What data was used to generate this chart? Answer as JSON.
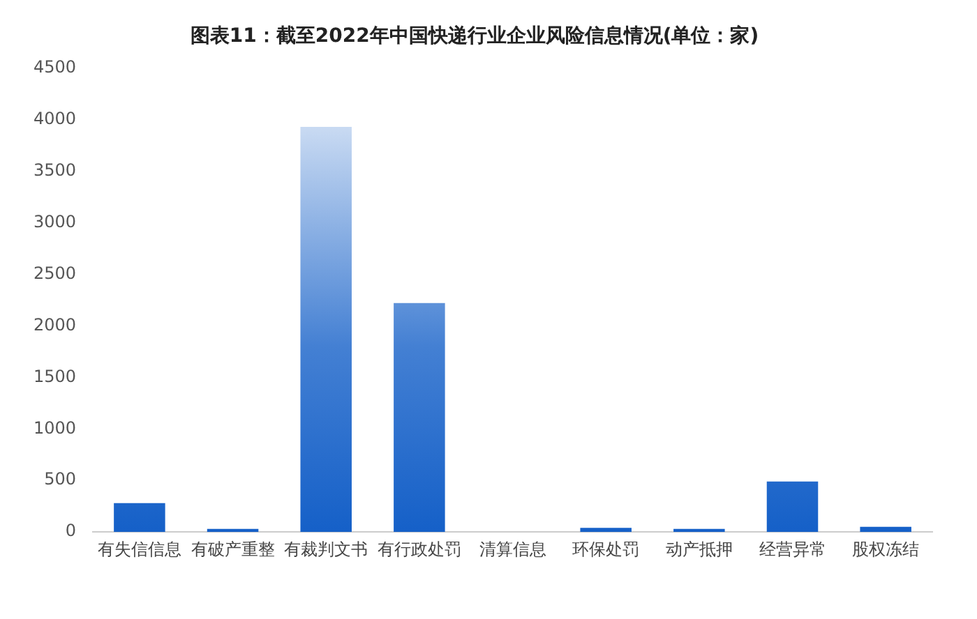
{
  "chart_data": {
    "type": "bar",
    "title": "图表11：截至2022年中国快递行业企业风险信息情况(单位：家)",
    "categories": [
      "有失信信息",
      "有破产重整",
      "有裁判文书",
      "有行政处罚",
      "清算信息",
      "环保处罚",
      "动产抵押",
      "经营异常",
      "股权冻结"
    ],
    "values": [
      280,
      30,
      3930,
      2220,
      0,
      40,
      30,
      490,
      50
    ],
    "color": "#1560c8",
    "ylim": [
      0,
      4500
    ],
    "yticks": [
      0,
      500,
      1000,
      1500,
      2000,
      2500,
      3000,
      3500,
      4000,
      4500
    ],
    "grid": false,
    "legend": false
  }
}
